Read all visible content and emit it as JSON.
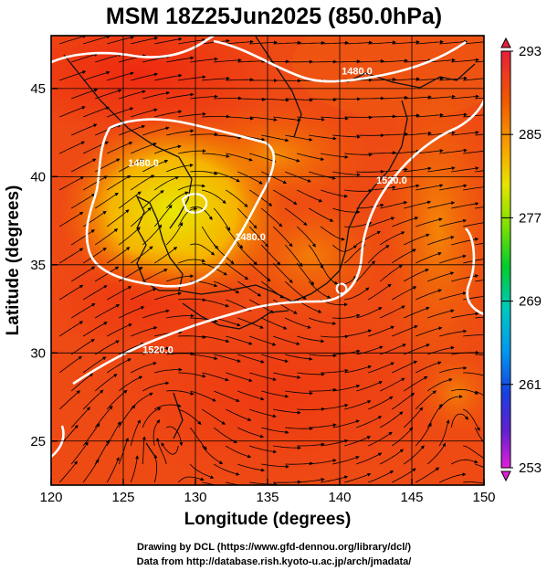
{
  "title": "MSM 18Z25Jun2025 (850.0hPa)",
  "xlabel": "Longitude (degrees)",
  "ylabel": "Latitude  (degrees)",
  "lon_range": [
    120,
    150
  ],
  "lat_range": [
    22.5,
    48
  ],
  "lon_ticks": [
    120,
    125,
    130,
    135,
    140,
    145,
    150
  ],
  "lat_ticks": [
    25,
    30,
    35,
    40,
    45
  ],
  "colorbar": {
    "min": 253,
    "max": 293,
    "tick_values": [
      293,
      285,
      277,
      269,
      261,
      253
    ],
    "tick_labels": [
      "293",
      "285",
      "277",
      "269",
      "261",
      "253"
    ]
  },
  "contour_labels": [
    {
      "text": "1480.0",
      "lon": 141.2,
      "lat": 45.8
    },
    {
      "text": "1480.0",
      "lon": 126.4,
      "lat": 40.6
    },
    {
      "text": "1480.0",
      "lon": 133.8,
      "lat": 36.4
    },
    {
      "text": "1520.0",
      "lon": 143.6,
      "lat": 39.6
    },
    {
      "text": "1520.0",
      "lon": 127.4,
      "lat": 30.0
    }
  ],
  "credits": {
    "line1": "Drawing by DCL (https://www.gfd-dennou.org/library/dcl/)",
    "line2": "Data from http://database.rish.kyoto-u.ac.jp/arch/jmadata/"
  }
}
